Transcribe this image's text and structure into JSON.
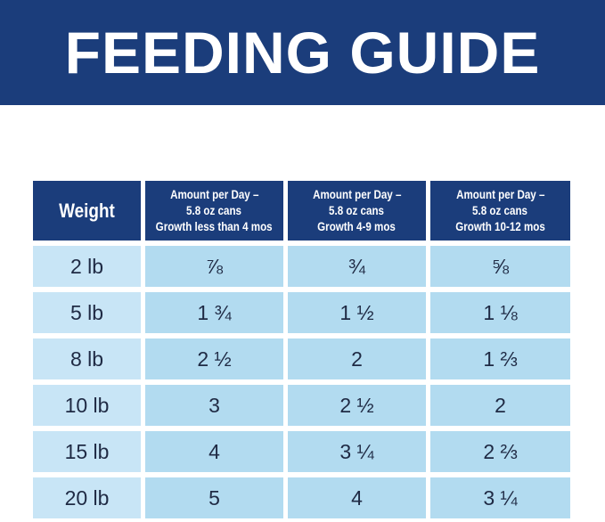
{
  "header": {
    "title": "FEEDING GUIDE"
  },
  "table": {
    "columns": [
      [
        "Weight"
      ],
      [
        "Amount per Day –",
        "5.8 oz cans",
        "Growth less than 4 mos"
      ],
      [
        "Amount per Day –",
        "5.8 oz cans",
        "Growth 4-9 mos"
      ],
      [
        "Amount per Day –",
        "5.8 oz cans",
        "Growth 10-12 mos"
      ]
    ],
    "rows": [
      [
        "2 lb",
        "⅞",
        "¾",
        "⅝"
      ],
      [
        "5 lb",
        "1 ¾",
        "1 ½",
        "1 ⅛"
      ],
      [
        "8 lb",
        "2 ½",
        "2",
        "1 ⅔"
      ],
      [
        "10 lb",
        "3",
        "2 ½",
        "2"
      ],
      [
        "15 lb",
        "4",
        "3 ¼",
        "2 ⅔"
      ],
      [
        "20 lb",
        "5",
        "4",
        "3 ¼"
      ]
    ]
  }
}
